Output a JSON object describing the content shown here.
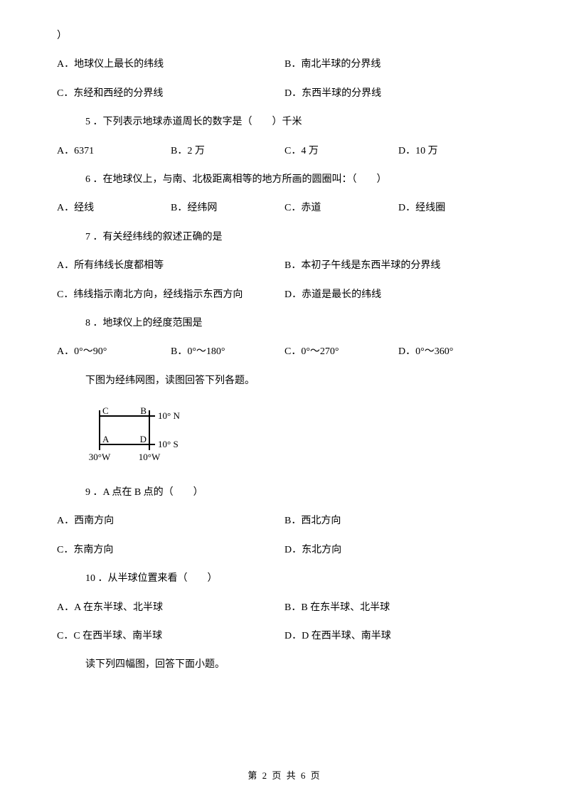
{
  "orphan": "）",
  "q4_options": {
    "a": "A．地球仪上最长的纬线",
    "b": "B．南北半球的分界线",
    "c": "C．东经和西经的分界线",
    "d": "D．东西半球的分界线"
  },
  "q5": {
    "stem": "5 ．下列表示地球赤道周长的数字是（　　）千米",
    "a": "A．6371",
    "b": "B．2 万",
    "c": "C．4 万",
    "d": "D．10 万"
  },
  "q6": {
    "stem": "6 ．在地球仪上，与南、北极距离相等的地方所画的圆圈叫：（　　）",
    "a": "A．经线",
    "b": "B．经纬网",
    "c": "C．赤道",
    "d": "D．经线圈"
  },
  "q7": {
    "stem": "7 ．有关经纬线的叙述正确的是",
    "a": "A．所有纬线长度都相等",
    "b": "B．本初子午线是东西半球的分界线",
    "c": "C．纬线指示南北方向，经线指示东西方向",
    "d": "D．赤道是最长的纬线"
  },
  "q8": {
    "stem": "8 ．地球仪上的经度范围是",
    "a": "A．0°～90°",
    "b": "B．0°～180°",
    "c": "C．0°～270°",
    "d": "D．0°～360°"
  },
  "gridmap_intro": "下图为经纬网图，读图回答下列各题。",
  "gridmap": {
    "labels": {
      "C": "C",
      "B": "B",
      "A": "A",
      "D": "D",
      "lat_top": "10° N",
      "lat_bot": "10° S",
      "lng_left": "30°W",
      "lng_right": "10°W"
    },
    "style": {
      "stroke": "#000000",
      "stroke_width": 2,
      "font_size": 13,
      "tick_len": 8,
      "outer_w": 190,
      "outer_h": 95
    }
  },
  "q9": {
    "stem": "9 ．A 点在 B 点的（　　）",
    "a": "A．西南方向",
    "b": "B．西北方向",
    "c": "C．东南方向",
    "d": "D．东北方向"
  },
  "q10": {
    "stem": "10 ．从半球位置来看（　　）",
    "a": "A．A 在东半球、北半球",
    "b": "B．B 在东半球、北半球",
    "c": "C．C 在西半球、南半球",
    "d": "D．D 在西半球、南半球"
  },
  "next_intro": "读下列四幅图，回答下面小题。",
  "footer": "第 2 页 共 6 页"
}
